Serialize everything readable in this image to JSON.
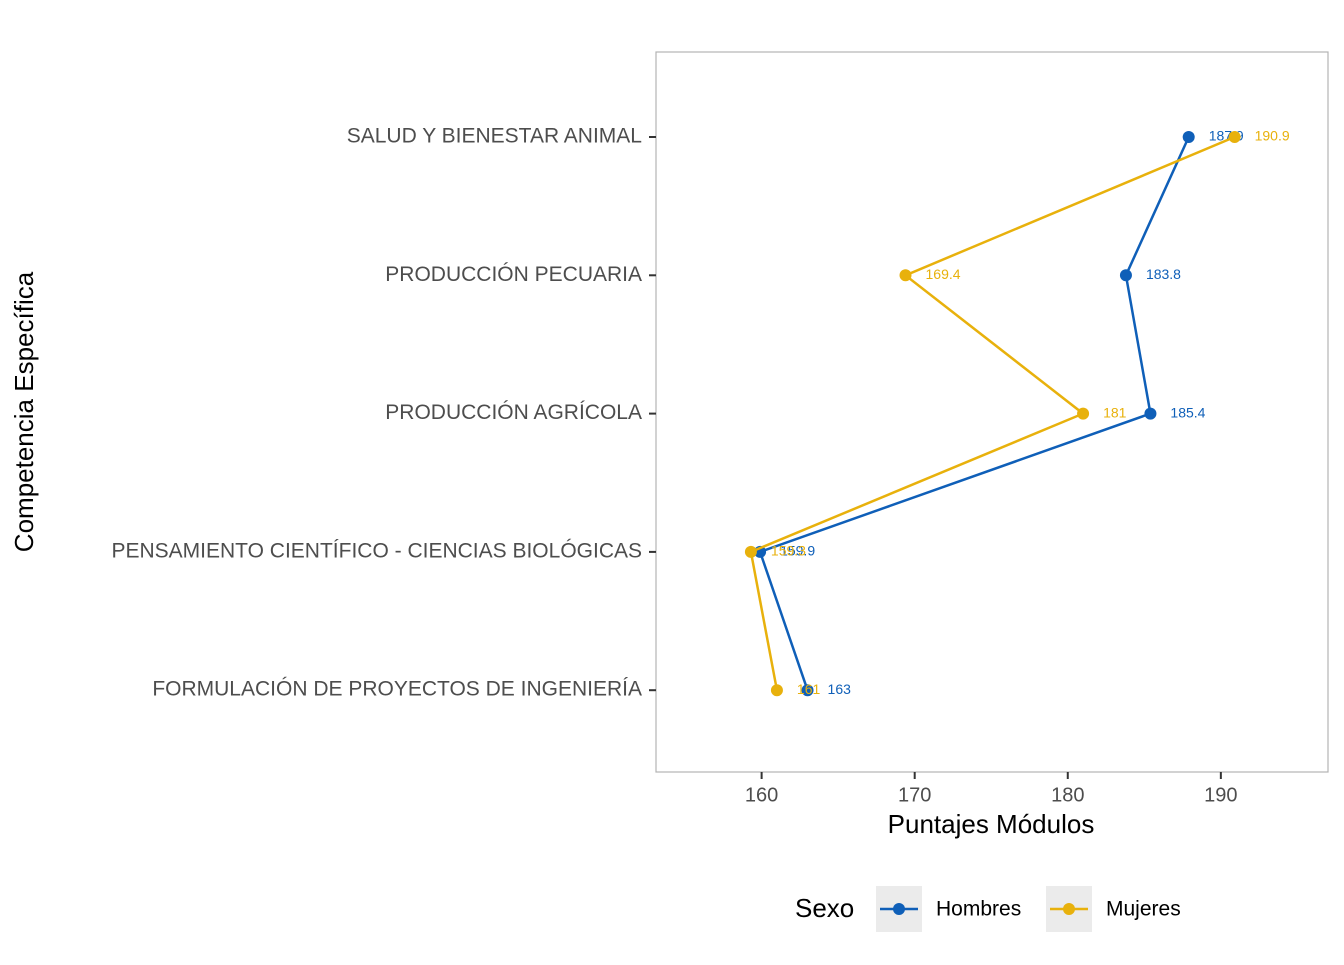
{
  "chart_data": {
    "type": "line",
    "x_label": "Puntajes Módulos",
    "y_label": "Competencia Específica",
    "categories": [
      "SALUD Y BIENESTAR ANIMAL",
      "PRODUCCIÓN PECUARIA",
      "PRODUCCIÓN AGRÍCOLA",
      "PENSAMIENTO CIENTÍFICO - CIENCIAS BIOLÓGICAS",
      "FORMULACIÓN DE PROYECTOS DE INGENIERÍA"
    ],
    "series": [
      {
        "name": "Hombres",
        "color": "#0f5fb8",
        "values": [
          187.9,
          183.8,
          185.4,
          159.9,
          163
        ]
      },
      {
        "name": "Mujeres",
        "color": "#e8b10c",
        "values": [
          190.9,
          169.4,
          181,
          159.3,
          161
        ]
      }
    ],
    "xlim": [
      153.1,
      197
    ],
    "xticks": [
      160,
      170,
      180,
      190
    ],
    "legend_title": "Sexo",
    "legend": "bottom",
    "grid": false
  }
}
